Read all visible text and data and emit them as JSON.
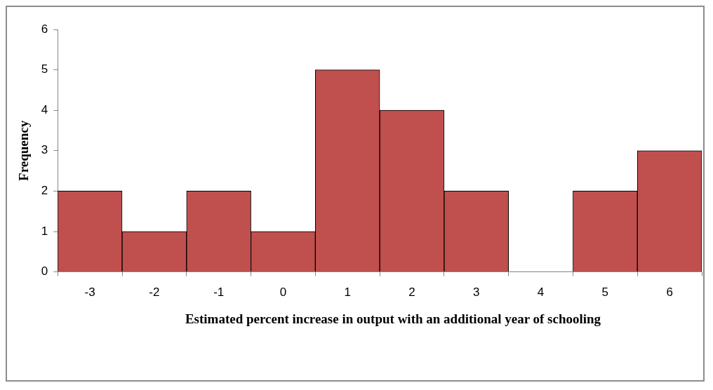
{
  "chart_data": {
    "type": "bar",
    "xlabel": "Estimated percent increase in output with an additional year of schooling",
    "ylabel": "Frequency",
    "categories": [
      "-3",
      "-2",
      "-1",
      "0",
      "1",
      "2",
      "3",
      "4",
      "5",
      "6"
    ],
    "values": [
      2,
      1,
      2,
      1,
      5,
      4,
      2,
      0,
      2,
      3
    ],
    "color": "#c0504d",
    "ylim": [
      0,
      6
    ],
    "yticks": [
      0,
      1,
      2,
      3,
      4,
      5,
      6
    ],
    "grid": false,
    "legend": false
  }
}
